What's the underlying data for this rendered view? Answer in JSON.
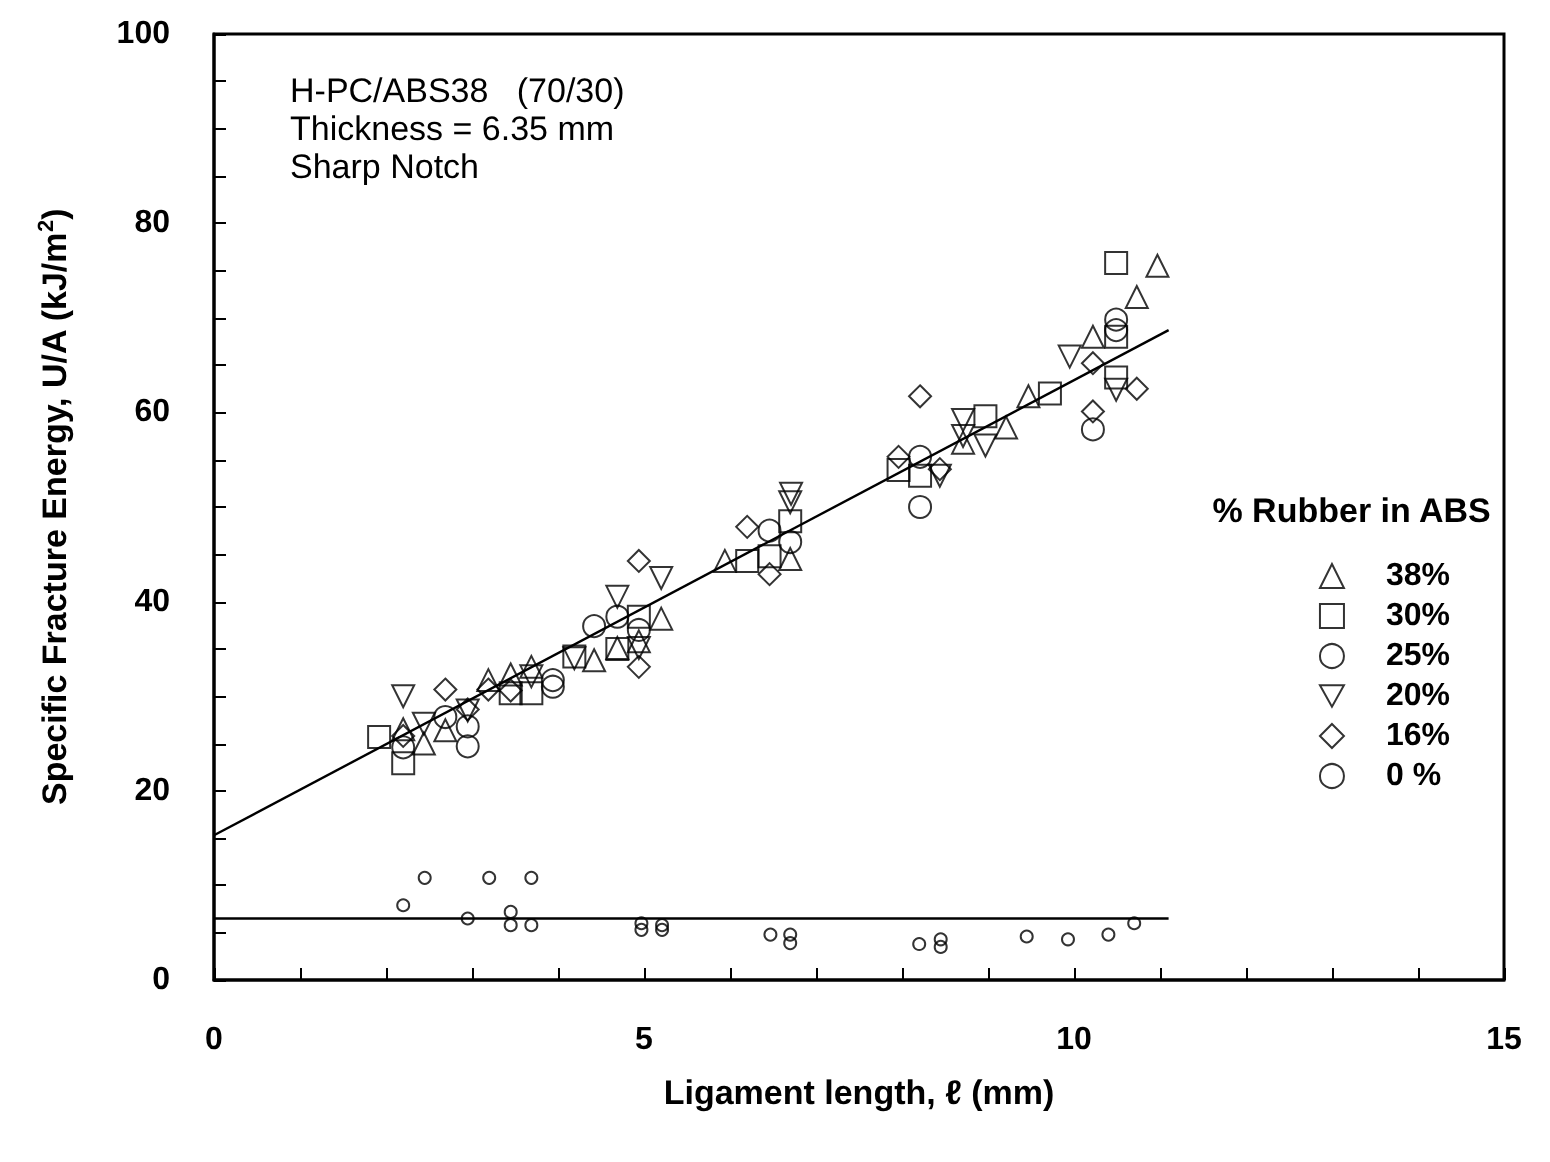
{
  "chart_data": {
    "type": "scatter",
    "xlabel": "Ligament length, ℓ (mm)",
    "ylabel": "Specific Fracture Energy, U/A (kJ/m$^{2}$)",
    "legend_title": "% Rubber in ABS",
    "legend": "right",
    "grid": false,
    "annotations": [
      "H-PC/ABS38   (70/30)",
      "Thickness = 6.35 mm",
      "Sharp Notch"
    ],
    "xlim": [
      0,
      15
    ],
    "xticks": [
      0,
      {
        "value": 1,
        "label": null
      },
      {
        "value": 2,
        "label": null
      },
      {
        "value": 3,
        "label": null
      },
      {
        "value": 4,
        "label": null
      },
      5,
      {
        "value": 6,
        "label": null
      },
      {
        "value": 7,
        "label": null
      },
      {
        "value": 8,
        "label": null
      },
      {
        "value": 9,
        "label": null
      },
      10,
      {
        "value": 11,
        "label": null
      },
      {
        "value": 12,
        "label": null
      },
      {
        "value": 13,
        "label": null
      },
      {
        "value": 14,
        "label": null
      },
      15
    ],
    "ylim": [
      0,
      100
    ],
    "yticks": [
      0,
      {
        "value": 5,
        "label": null
      },
      {
        "value": 10,
        "label": null
      },
      {
        "value": 15,
        "label": null
      },
      20,
      {
        "value": 25,
        "label": null
      },
      {
        "value": 30,
        "label": null
      },
      {
        "value": 35,
        "label": null
      },
      40,
      {
        "value": 45,
        "label": null
      },
      {
        "value": 50,
        "label": null
      },
      {
        "value": 55,
        "label": null
      },
      60,
      {
        "value": 65,
        "label": null
      },
      {
        "value": 70,
        "label": null
      },
      {
        "value": 75,
        "label": null
      },
      80,
      {
        "value": 85,
        "label": null
      },
      {
        "value": 90,
        "label": null
      },
      {
        "value": 95,
        "label": null
      },
      100
    ],
    "series": [
      {
        "name": "38%",
        "color": "#000000",
        "marker": "triangle",
        "x": [
          2.2,
          2.44,
          2.69,
          3.19,
          3.45,
          3.69,
          4.42,
          4.69,
          4.94,
          5.2,
          5.94,
          6.7,
          8.71,
          9.21,
          9.47,
          10.22,
          10.73,
          10.97
        ],
        "values": [
          26.5,
          25.0,
          26.4,
          31.7,
          32.3,
          33.1,
          33.8,
          35.1,
          35.8,
          38.2,
          44.3,
          44.5,
          56.8,
          58.4,
          61.7,
          68.0,
          72.2,
          75.5
        ]
      },
      {
        "name": "30%",
        "color": "#000000",
        "marker": "square",
        "x": [
          1.92,
          2.2,
          3.45,
          3.69,
          4.19,
          4.69,
          4.94,
          6.2,
          6.46,
          6.7,
          7.96,
          8.21,
          8.97,
          9.72,
          10.49,
          10.49,
          10.49
        ],
        "values": [
          25.7,
          22.9,
          30.3,
          30.3,
          34.2,
          35.0,
          38.4,
          44.3,
          44.8,
          48.5,
          53.9,
          53.3,
          59.6,
          62.0,
          75.8,
          68.0,
          63.7
        ]
      },
      {
        "name": "25%",
        "color": "#000000",
        "marker": "circle",
        "x": [
          2.2,
          2.69,
          2.95,
          2.95,
          3.94,
          3.94,
          4.42,
          4.69,
          4.94,
          6.46,
          6.7,
          8.21,
          8.21,
          10.22,
          10.49,
          10.49
        ],
        "values": [
          24.6,
          27.8,
          24.7,
          26.8,
          31.7,
          31.0,
          37.4,
          38.4,
          37.0,
          47.5,
          46.3,
          55.3,
          50.0,
          58.2,
          69.8,
          68.7
        ]
      },
      {
        "name": "20%",
        "color": "#000000",
        "marker": "triangle-down",
        "x": [
          2.2,
          2.44,
          2.95,
          3.69,
          4.19,
          4.69,
          4.94,
          5.2,
          6.7,
          6.71,
          8.44,
          8.71,
          8.71,
          8.97,
          9.95,
          10.49
        ],
        "values": [
          30.0,
          27.1,
          28.5,
          32.1,
          34.0,
          40.5,
          35.1,
          42.5,
          50.5,
          51.4,
          53.3,
          59.2,
          57.5,
          56.5,
          65.9,
          62.4
        ]
      },
      {
        "name": "16%",
        "color": "#000000",
        "marker": "diamond",
        "x": [
          2.2,
          2.69,
          2.95,
          3.19,
          3.45,
          4.94,
          4.94,
          6.2,
          6.46,
          7.96,
          8.21,
          8.44,
          10.22,
          10.22,
          10.73
        ],
        "values": [
          25.8,
          30.7,
          28.6,
          30.7,
          30.6,
          44.3,
          33.1,
          47.9,
          42.9,
          55.3,
          61.7,
          54.0,
          65.2,
          60.1,
          62.5
        ]
      },
      {
        "name": "0 %",
        "color": "#000000",
        "marker": "circle",
        "x": [
          2.2,
          2.45,
          2.95,
          3.2,
          3.45,
          3.45,
          3.69,
          3.69,
          4.97,
          4.97,
          5.21,
          5.21,
          6.47,
          6.7,
          6.7,
          8.2,
          8.45,
          8.45,
          9.45,
          9.93,
          10.4,
          10.7
        ],
        "values": [
          7.9,
          10.8,
          6.5,
          10.8,
          7.2,
          5.8,
          10.8,
          5.8,
          6.0,
          5.3,
          5.8,
          5.3,
          4.8,
          4.8,
          3.9,
          3.8,
          3.5,
          4.3,
          4.6,
          4.3,
          4.8,
          6.0
        ]
      },
      {
        "type": "line",
        "color": "#000000",
        "marker": "none",
        "x": [
          0,
          11.1
        ],
        "values": [
          15.3,
          68.7
        ]
      },
      {
        "type": "line",
        "color": "#000000",
        "marker": "none",
        "x": [
          0,
          11.1
        ],
        "values": [
          6.5,
          6.5
        ]
      }
    ]
  }
}
